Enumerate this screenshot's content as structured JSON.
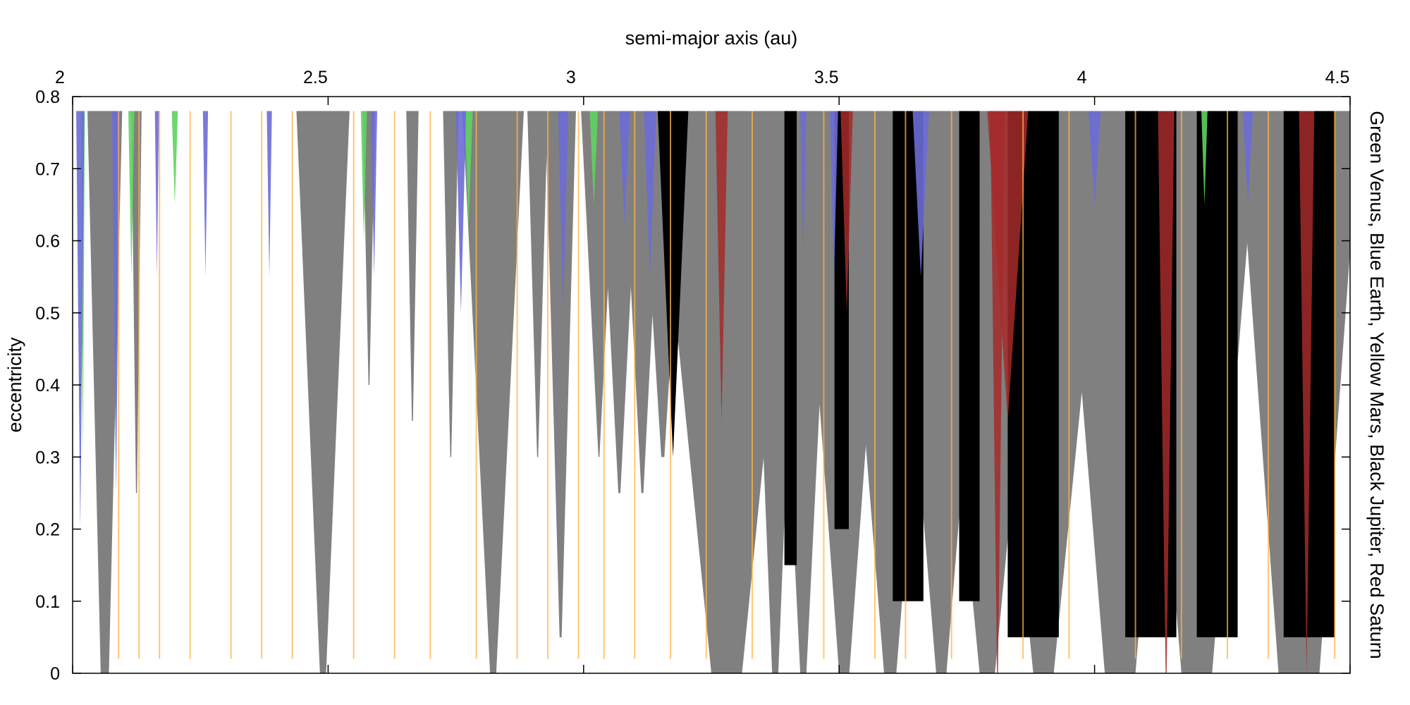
{
  "chart_data": {
    "type": "area",
    "xlabel": "semi-major axis (au)",
    "ylabel": "eccentricity",
    "right_label": "Green Venus, Blue Earth, Yellow Mars, Black Jupiter, Red Saturn",
    "xlim": [
      2,
      4.5
    ],
    "ylim": [
      0,
      0.8
    ],
    "x_ticks": [
      2,
      2.5,
      3,
      3.5,
      4,
      4.5
    ],
    "x_tick_labels": [
      "2",
      "2.5",
      "3",
      "3.5",
      "4",
      "4.5"
    ],
    "y_ticks": [
      0,
      0.1,
      0.2,
      0.3,
      0.4,
      0.5,
      0.6,
      0.7,
      0.8
    ],
    "y_tick_labels": [
      "0",
      "0.1",
      "0.2",
      "0.3",
      "0.4",
      "0.5",
      "0.6",
      "0.7",
      "0.8"
    ],
    "x_axis_position": "top",
    "grid": false,
    "colors": {
      "venus": "#5fd35f",
      "earth": "#6b6bd6",
      "mars": "#ffb347",
      "jupiter": "#808080",
      "jupiter_dark": "#000000",
      "saturn": "#cd5c5c",
      "saturn_dark": "#a52a2a"
    },
    "series": [
      {
        "name": "Black Jupiter",
        "color": "#808080",
        "opacity": 1,
        "regions": [
          {
            "x": 2.063,
            "w0": 0.008,
            "w1": 0.034,
            "e_min": 0.0
          },
          {
            "x": 2.125,
            "w0": 0.001,
            "w1": 0.01,
            "e_min": 0.25
          },
          {
            "x": 2.49,
            "w0": 0.006,
            "w1": 0.052,
            "e_min": 0.0
          },
          {
            "x": 2.58,
            "w0": 0.001,
            "w1": 0.012,
            "e_min": 0.4
          },
          {
            "x": 2.665,
            "w0": 0.001,
            "w1": 0.012,
            "e_min": 0.35
          },
          {
            "x": 2.74,
            "w0": 0.001,
            "w1": 0.015,
            "e_min": 0.3
          },
          {
            "x": 2.823,
            "w0": 0.006,
            "w1": 0.06,
            "e_min": 0.0
          },
          {
            "x": 2.91,
            "w0": 0.001,
            "w1": 0.02,
            "e_min": 0.3
          },
          {
            "x": 2.955,
            "w0": 0.002,
            "w1": 0.03,
            "e_min": 0.05
          },
          {
            "x": 3.03,
            "w0": 0.001,
            "w1": 0.035,
            "e_min": 0.3
          },
          {
            "x": 3.07,
            "w0": 0.002,
            "w1": 0.04,
            "e_min": 0.25
          },
          {
            "x": 3.115,
            "w0": 0.002,
            "w1": 0.04,
            "e_min": 0.25
          },
          {
            "x": 3.155,
            "w0": 0.003,
            "w1": 0.045,
            "e_min": 0.3
          },
          {
            "x": 3.22,
            "w0": 0.005,
            "w1": 0.08,
            "e_min": 0.3
          },
          {
            "x": 3.28,
            "w0": 0.03,
            "w1": 0.14,
            "e_min": 0.0
          },
          {
            "x": 3.375,
            "w0": 0.006,
            "w1": 0.05,
            "e_min": 0.0
          },
          {
            "x": 3.43,
            "w0": 0.006,
            "w1": 0.06,
            "e_min": 0.0
          },
          {
            "x": 3.51,
            "w0": 0.01,
            "w1": 0.09,
            "e_min": 0.0
          },
          {
            "x": 3.6,
            "w0": 0.012,
            "w1": 0.1,
            "e_min": 0.0
          },
          {
            "x": 3.7,
            "w0": 0.01,
            "w1": 0.1,
            "e_min": 0.0
          },
          {
            "x": 3.79,
            "w0": 0.015,
            "w1": 0.12,
            "e_min": 0.0
          },
          {
            "x": 3.9,
            "w0": 0.02,
            "w1": 0.13,
            "e_min": 0.0
          },
          {
            "x": 4.05,
            "w0": 0.03,
            "w1": 0.12,
            "e_min": 0.0
          },
          {
            "x": 4.2,
            "w0": 0.03,
            "w1": 0.12,
            "e_min": 0.0
          },
          {
            "x": 4.4,
            "w0": 0.04,
            "w1": 0.12,
            "e_min": 0.0
          }
        ]
      },
      {
        "name": "Black Jupiter (dark core)",
        "color": "#000000",
        "opacity": 1,
        "regions": [
          {
            "x": 3.175,
            "w0": 0.0,
            "w1": 0.03,
            "e_min": 0.3
          },
          {
            "x": 3.405,
            "w0": 0.012,
            "w1": 0.012,
            "e_min": 0.15
          },
          {
            "x": 3.505,
            "w0": 0.014,
            "w1": 0.014,
            "e_min": 0.2
          },
          {
            "x": 3.635,
            "w0": 0.03,
            "w1": 0.03,
            "e_min": 0.1
          },
          {
            "x": 3.755,
            "w0": 0.02,
            "w1": 0.02,
            "e_min": 0.1
          },
          {
            "x": 3.88,
            "w0": 0.05,
            "w1": 0.05,
            "e_min": 0.05
          },
          {
            "x": 4.11,
            "w0": 0.05,
            "w1": 0.05,
            "e_min": 0.05
          },
          {
            "x": 4.24,
            "w0": 0.04,
            "w1": 0.04,
            "e_min": 0.05
          },
          {
            "x": 4.42,
            "w0": 0.05,
            "w1": 0.05,
            "e_min": 0.05
          }
        ]
      },
      {
        "name": "Red Saturn",
        "color": "#a52a2a",
        "opacity": 0.85,
        "regions": [
          {
            "x": 3.27,
            "w0": 0.0,
            "w1": 0.012,
            "e_min": 0.35
          },
          {
            "x": 3.515,
            "w0": 0.0,
            "w1": 0.012,
            "e_min": 0.5
          },
          {
            "x": 3.81,
            "w0": 0.001,
            "w1": 0.014,
            "e_min": 0.0
          },
          {
            "x": 3.83,
            "w0": 0.0,
            "w1": 0.04,
            "e_min": 0.35
          },
          {
            "x": 4.14,
            "w0": 0.001,
            "w1": 0.016,
            "e_min": 0.0
          },
          {
            "x": 4.415,
            "w0": 0.0,
            "w1": 0.015,
            "e_min": 0.0
          }
        ]
      },
      {
        "name": "Green Venus",
        "color": "#5fd35f",
        "opacity": 0.9,
        "regions": [
          {
            "x": 2.02,
            "w0": 0.0,
            "w1": 0.004,
            "e_min": 0.3
          },
          {
            "x": 2.115,
            "w0": 0.0,
            "w1": 0.006,
            "e_min": 0.55
          },
          {
            "x": 2.2,
            "w0": 0.0,
            "w1": 0.006,
            "e_min": 0.65
          },
          {
            "x": 2.57,
            "w0": 0.0,
            "w1": 0.006,
            "e_min": 0.6
          },
          {
            "x": 2.775,
            "w0": 0.0,
            "w1": 0.008,
            "e_min": 0.62
          },
          {
            "x": 3.02,
            "w0": 0.0,
            "w1": 0.008,
            "e_min": 0.65
          },
          {
            "x": 4.215,
            "w0": 0.0,
            "w1": 0.006,
            "e_min": 0.65
          }
        ]
      },
      {
        "name": "Blue Earth",
        "color": "#6b6bd6",
        "opacity": 0.9,
        "regions": [
          {
            "x": 2.015,
            "w0": 0.0,
            "w1": 0.008,
            "e_min": 0.2
          },
          {
            "x": 2.085,
            "w0": 0.0,
            "w1": 0.008,
            "e_min": 0.25
          },
          {
            "x": 2.165,
            "w0": 0.0,
            "w1": 0.004,
            "e_min": 0.55
          },
          {
            "x": 2.26,
            "w0": 0.0,
            "w1": 0.005,
            "e_min": 0.55
          },
          {
            "x": 2.385,
            "w0": 0.0,
            "w1": 0.005,
            "e_min": 0.55
          },
          {
            "x": 2.59,
            "w0": 0.0,
            "w1": 0.006,
            "e_min": 0.55
          },
          {
            "x": 2.76,
            "w0": 0.0,
            "w1": 0.01,
            "e_min": 0.5
          },
          {
            "x": 2.96,
            "w0": 0.0,
            "w1": 0.01,
            "e_min": 0.5
          },
          {
            "x": 3.08,
            "w0": 0.0,
            "w1": 0.01,
            "e_min": 0.62
          },
          {
            "x": 3.13,
            "w0": 0.0,
            "w1": 0.012,
            "e_min": 0.55
          },
          {
            "x": 3.43,
            "w0": 0.0,
            "w1": 0.006,
            "e_min": 0.58
          },
          {
            "x": 3.49,
            "w0": 0.0,
            "w1": 0.008,
            "e_min": 0.55
          },
          {
            "x": 3.66,
            "w0": 0.0,
            "w1": 0.016,
            "e_min": 0.55
          },
          {
            "x": 4.0,
            "w0": 0.0,
            "w1": 0.012,
            "e_min": 0.65
          },
          {
            "x": 4.3,
            "w0": 0.0,
            "w1": 0.01,
            "e_min": 0.65
          }
        ]
      },
      {
        "name": "Yellow Mars",
        "color": "#ffb347",
        "opacity": 0.75,
        "line_x": [
          2.09,
          2.13,
          2.17,
          2.23,
          2.31,
          2.37,
          2.43,
          2.55,
          2.63,
          2.7,
          2.79,
          2.87,
          2.93,
          2.99,
          3.04,
          3.1,
          3.17,
          3.24,
          3.33,
          3.47,
          3.57,
          3.63,
          3.72,
          3.86,
          3.95,
          4.08,
          4.17,
          4.26,
          4.34,
          4.47
        ],
        "e_min": 0.02
      }
    ]
  }
}
